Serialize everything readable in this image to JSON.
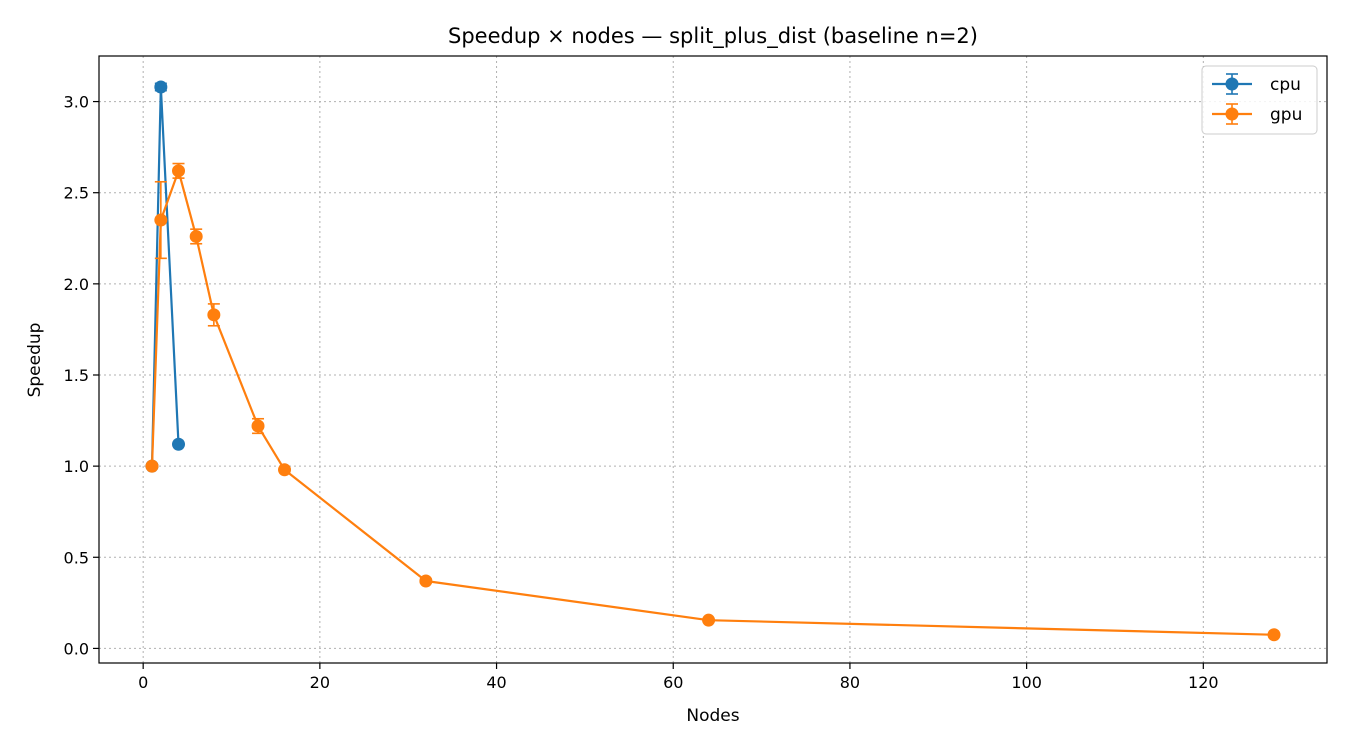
{
  "chart_data": {
    "type": "line",
    "title": "Speedup × nodes — split_plus_dist (baseline n=2)",
    "xlabel": "Nodes",
    "ylabel": "Speedup",
    "xlim": [
      -5,
      134
    ],
    "ylim": [
      -0.08,
      3.25
    ],
    "xticks": [
      0,
      20,
      40,
      60,
      80,
      100,
      120
    ],
    "yticks": [
      0.0,
      0.5,
      1.0,
      1.5,
      2.0,
      2.5,
      3.0
    ],
    "xtick_labels": [
      "0",
      "20",
      "40",
      "60",
      "80",
      "100",
      "120"
    ],
    "ytick_labels": [
      "0.0",
      "0.5",
      "1.0",
      "1.5",
      "2.0",
      "2.5",
      "3.0"
    ],
    "grid": true,
    "legend_position": "top-right",
    "series": [
      {
        "name": "cpu",
        "color": "#1f77b4",
        "x": [
          1,
          2,
          4
        ],
        "y": [
          1.0,
          3.08,
          1.12
        ],
        "err": [
          0.0,
          0.02,
          0.01
        ]
      },
      {
        "name": "gpu",
        "color": "#ff7f0e",
        "x": [
          1,
          2,
          4,
          6,
          8,
          13,
          16,
          32,
          64,
          128
        ],
        "y": [
          1.0,
          2.35,
          2.62,
          2.26,
          1.83,
          1.22,
          0.98,
          0.37,
          0.155,
          0.075
        ],
        "err": [
          0.0,
          0.21,
          0.04,
          0.04,
          0.06,
          0.04,
          0.01,
          0.01,
          0.004,
          0.003
        ]
      }
    ]
  }
}
